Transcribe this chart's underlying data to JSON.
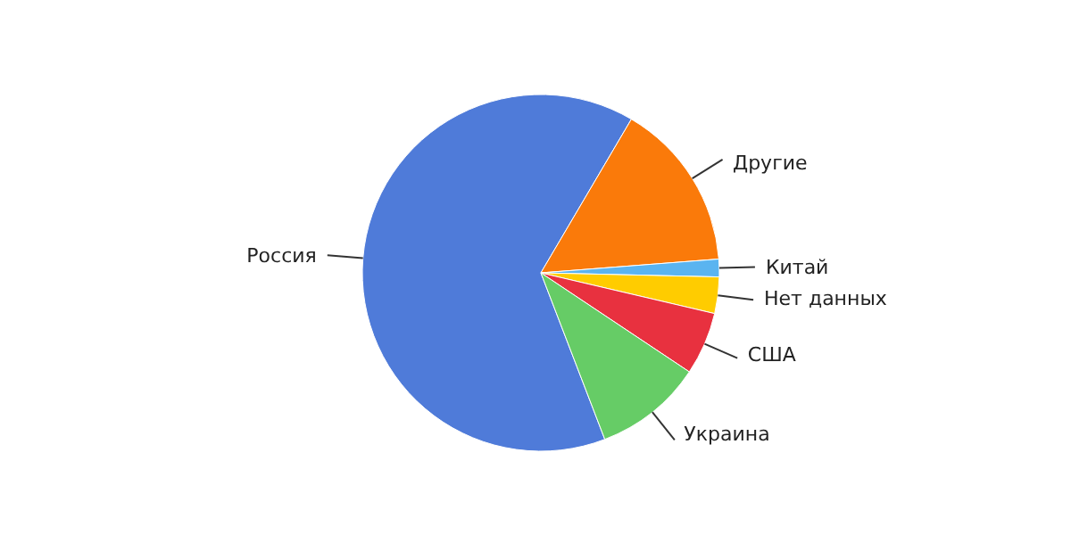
{
  "chart_data": {
    "type": "pie",
    "categories": [
      "Россия",
      "Другие",
      "Китай",
      "Нет данных",
      "США",
      "Украина"
    ],
    "values": [
      64.3,
      15.3,
      1.6,
      3.3,
      5.7,
      9.8
    ],
    "colors": [
      "#4f7bd9",
      "#fa7a0a",
      "#5ab4f0",
      "#ffcc00",
      "#e8313f",
      "#66cc66"
    ],
    "legend": false
  }
}
